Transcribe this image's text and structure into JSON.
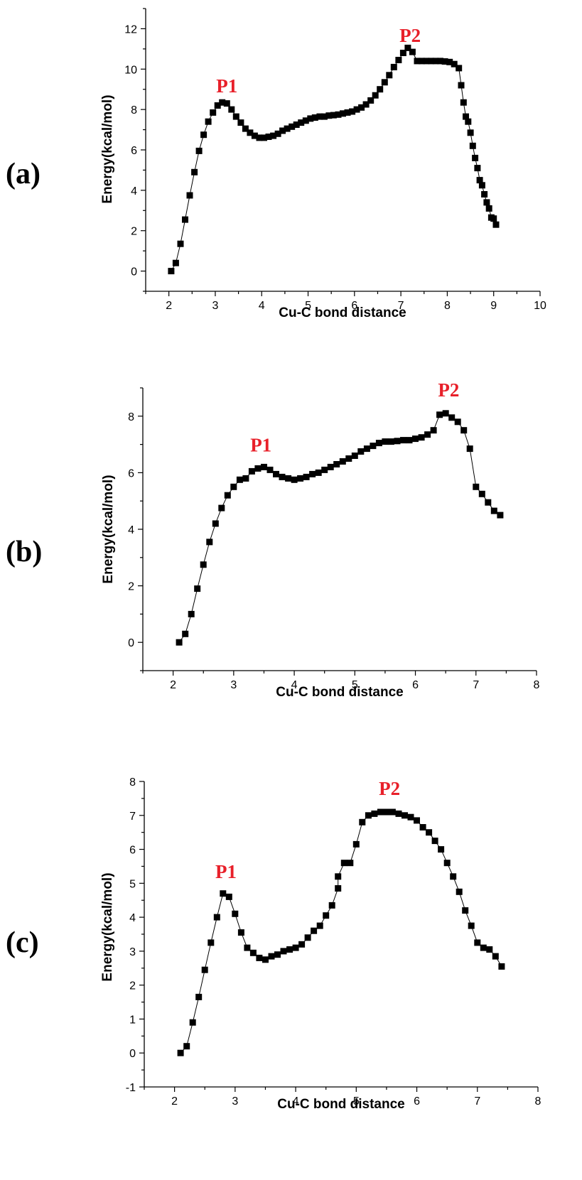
{
  "colors": {
    "peak_label": "#e8202a",
    "marker": "#000000",
    "line": "#000000"
  },
  "chart_data": [
    {
      "type": "line",
      "panel_label": "(a)",
      "xlabel": "Cu-C bond distance",
      "ylabel": "Energy(kcal/mol)",
      "xlim": [
        1.5,
        10
      ],
      "ylim": [
        -1,
        13
      ],
      "xticks": [
        2,
        3,
        4,
        5,
        6,
        7,
        8,
        9,
        10
      ],
      "yticks": [
        0,
        2,
        4,
        6,
        8,
        10,
        12
      ],
      "annotations": [
        {
          "text": "P1",
          "x": 3.25,
          "y": 8.85
        },
        {
          "text": "P2",
          "x": 7.2,
          "y": 11.35
        }
      ],
      "series": [
        {
          "marker": "square",
          "points": [
            [
              2.05,
              0.0
            ],
            [
              2.15,
              0.4
            ],
            [
              2.25,
              1.35
            ],
            [
              2.35,
              2.55
            ],
            [
              2.45,
              3.75
            ],
            [
              2.55,
              4.9
            ],
            [
              2.65,
              5.95
            ],
            [
              2.75,
              6.75
            ],
            [
              2.85,
              7.4
            ],
            [
              2.95,
              7.85
            ],
            [
              3.05,
              8.2
            ],
            [
              3.15,
              8.35
            ],
            [
              3.25,
              8.3
            ],
            [
              3.35,
              8.0
            ],
            [
              3.45,
              7.65
            ],
            [
              3.55,
              7.35
            ],
            [
              3.65,
              7.05
            ],
            [
              3.75,
              6.85
            ],
            [
              3.85,
              6.7
            ],
            [
              3.95,
              6.6
            ],
            [
              4.05,
              6.6
            ],
            [
              4.15,
              6.65
            ],
            [
              4.25,
              6.7
            ],
            [
              4.35,
              6.8
            ],
            [
              4.45,
              6.95
            ],
            [
              4.55,
              7.05
            ],
            [
              4.65,
              7.15
            ],
            [
              4.75,
              7.25
            ],
            [
              4.85,
              7.35
            ],
            [
              4.95,
              7.45
            ],
            [
              5.05,
              7.55
            ],
            [
              5.15,
              7.6
            ],
            [
              5.25,
              7.65
            ],
            [
              5.35,
              7.65
            ],
            [
              5.45,
              7.7
            ],
            [
              5.55,
              7.72
            ],
            [
              5.65,
              7.75
            ],
            [
              5.75,
              7.8
            ],
            [
              5.85,
              7.85
            ],
            [
              5.95,
              7.9
            ],
            [
              6.05,
              8.0
            ],
            [
              6.15,
              8.1
            ],
            [
              6.25,
              8.25
            ],
            [
              6.35,
              8.45
            ],
            [
              6.45,
              8.7
            ],
            [
              6.55,
              9.0
            ],
            [
              6.65,
              9.35
            ],
            [
              6.75,
              9.7
            ],
            [
              6.85,
              10.1
            ],
            [
              6.95,
              10.45
            ],
            [
              7.05,
              10.8
            ],
            [
              7.15,
              11.05
            ],
            [
              7.25,
              10.85
            ],
            [
              7.35,
              10.4
            ],
            [
              7.45,
              10.4
            ],
            [
              7.55,
              10.4
            ],
            [
              7.65,
              10.4
            ],
            [
              7.75,
              10.4
            ],
            [
              7.85,
              10.4
            ],
            [
              7.95,
              10.38
            ],
            [
              8.05,
              10.35
            ],
            [
              8.15,
              10.25
            ],
            [
              8.25,
              10.05
            ],
            [
              8.3,
              9.2
            ],
            [
              8.35,
              8.35
            ],
            [
              8.4,
              7.65
            ],
            [
              8.45,
              7.4
            ],
            [
              8.5,
              6.85
            ],
            [
              8.55,
              6.2
            ],
            [
              8.6,
              5.6
            ],
            [
              8.65,
              5.1
            ],
            [
              8.7,
              4.5
            ],
            [
              8.75,
              4.25
            ],
            [
              8.8,
              3.8
            ],
            [
              8.85,
              3.4
            ],
            [
              8.9,
              3.1
            ],
            [
              8.95,
              2.65
            ],
            [
              9.0,
              2.6
            ],
            [
              9.05,
              2.3
            ]
          ]
        }
      ]
    },
    {
      "type": "line",
      "panel_label": "(b)",
      "xlabel": "Cu-C bond distance",
      "ylabel": "Energy(kcal/mol)",
      "xlim": [
        1.5,
        8
      ],
      "ylim": [
        -1,
        9
      ],
      "xticks": [
        2,
        3,
        4,
        5,
        6,
        7,
        8
      ],
      "yticks": [
        0,
        2,
        4,
        6,
        8
      ],
      "annotations": [
        {
          "text": "P1",
          "x": 3.45,
          "y": 6.75
        },
        {
          "text": "P2",
          "x": 6.55,
          "y": 8.7
        }
      ],
      "series": [
        {
          "marker": "square",
          "points": [
            [
              2.1,
              0.0
            ],
            [
              2.2,
              0.3
            ],
            [
              2.3,
              1.0
            ],
            [
              2.4,
              1.9
            ],
            [
              2.5,
              2.75
            ],
            [
              2.6,
              3.55
            ],
            [
              2.7,
              4.2
            ],
            [
              2.8,
              4.75
            ],
            [
              2.9,
              5.2
            ],
            [
              3.0,
              5.5
            ],
            [
              3.1,
              5.75
            ],
            [
              3.2,
              5.8
            ],
            [
              3.3,
              6.05
            ],
            [
              3.4,
              6.15
            ],
            [
              3.5,
              6.2
            ],
            [
              3.6,
              6.1
            ],
            [
              3.7,
              5.95
            ],
            [
              3.8,
              5.85
            ],
            [
              3.9,
              5.8
            ],
            [
              4.0,
              5.75
            ],
            [
              4.1,
              5.8
            ],
            [
              4.2,
              5.85
            ],
            [
              4.3,
              5.95
            ],
            [
              4.4,
              6.0
            ],
            [
              4.5,
              6.1
            ],
            [
              4.6,
              6.2
            ],
            [
              4.7,
              6.3
            ],
            [
              4.8,
              6.4
            ],
            [
              4.9,
              6.5
            ],
            [
              5.0,
              6.6
            ],
            [
              5.1,
              6.75
            ],
            [
              5.2,
              6.85
            ],
            [
              5.3,
              6.95
            ],
            [
              5.4,
              7.05
            ],
            [
              5.5,
              7.1
            ],
            [
              5.6,
              7.1
            ],
            [
              5.7,
              7.12
            ],
            [
              5.8,
              7.15
            ],
            [
              5.9,
              7.15
            ],
            [
              6.0,
              7.2
            ],
            [
              6.1,
              7.25
            ],
            [
              6.2,
              7.35
            ],
            [
              6.3,
              7.5
            ],
            [
              6.4,
              8.05
            ],
            [
              6.5,
              8.1
            ],
            [
              6.6,
              7.95
            ],
            [
              6.7,
              7.8
            ],
            [
              6.8,
              7.5
            ],
            [
              6.9,
              6.85
            ],
            [
              7.0,
              5.5
            ],
            [
              7.1,
              5.25
            ],
            [
              7.2,
              4.95
            ],
            [
              7.3,
              4.65
            ],
            [
              7.4,
              4.5
            ]
          ]
        }
      ]
    },
    {
      "type": "line",
      "panel_label": "(c)",
      "xlabel": "Cu-C bond distance",
      "ylabel": "Energy(kcal/mol)",
      "xlim": [
        1.5,
        8
      ],
      "ylim": [
        -1,
        8
      ],
      "xticks": [
        2,
        3,
        4,
        5,
        6,
        7,
        8
      ],
      "yticks": [
        -1,
        0,
        1,
        2,
        3,
        4,
        5,
        6,
        7,
        8
      ],
      "annotations": [
        {
          "text": "P1",
          "x": 2.85,
          "y": 5.15
        },
        {
          "text": "P2",
          "x": 5.55,
          "y": 7.6
        }
      ],
      "series": [
        {
          "marker": "square",
          "points": [
            [
              2.1,
              0.0
            ],
            [
              2.2,
              0.2
            ],
            [
              2.3,
              0.9
            ],
            [
              2.4,
              1.65
            ],
            [
              2.5,
              2.45
            ],
            [
              2.6,
              3.25
            ],
            [
              2.7,
              4.0
            ],
            [
              2.8,
              4.7
            ],
            [
              2.9,
              4.6
            ],
            [
              3.0,
              4.1
            ],
            [
              3.1,
              3.55
            ],
            [
              3.2,
              3.1
            ],
            [
              3.3,
              2.95
            ],
            [
              3.4,
              2.8
            ],
            [
              3.5,
              2.75
            ],
            [
              3.6,
              2.85
            ],
            [
              3.7,
              2.9
            ],
            [
              3.8,
              3.0
            ],
            [
              3.9,
              3.05
            ],
            [
              4.0,
              3.1
            ],
            [
              4.1,
              3.2
            ],
            [
              4.2,
              3.4
            ],
            [
              4.3,
              3.6
            ],
            [
              4.4,
              3.75
            ],
            [
              4.5,
              4.05
            ],
            [
              4.6,
              4.35
            ],
            [
              4.7,
              4.85
            ],
            [
              4.7,
              5.2
            ],
            [
              4.8,
              5.6
            ],
            [
              4.9,
              5.6
            ],
            [
              5.0,
              6.15
            ],
            [
              5.1,
              6.8
            ],
            [
              5.2,
              7.0
            ],
            [
              5.3,
              7.05
            ],
            [
              5.4,
              7.1
            ],
            [
              5.5,
              7.1
            ],
            [
              5.6,
              7.1
            ],
            [
              5.7,
              7.05
            ],
            [
              5.8,
              7.0
            ],
            [
              5.9,
              6.95
            ],
            [
              6.0,
              6.85
            ],
            [
              6.1,
              6.65
            ],
            [
              6.2,
              6.5
            ],
            [
              6.3,
              6.25
            ],
            [
              6.4,
              6.0
            ],
            [
              6.5,
              5.6
            ],
            [
              6.6,
              5.2
            ],
            [
              6.7,
              4.75
            ],
            [
              6.8,
              4.2
            ],
            [
              6.9,
              3.75
            ],
            [
              7.0,
              3.25
            ],
            [
              7.1,
              3.1
            ],
            [
              7.2,
              3.05
            ],
            [
              7.3,
              2.85
            ],
            [
              7.4,
              2.55
            ]
          ]
        }
      ]
    }
  ]
}
